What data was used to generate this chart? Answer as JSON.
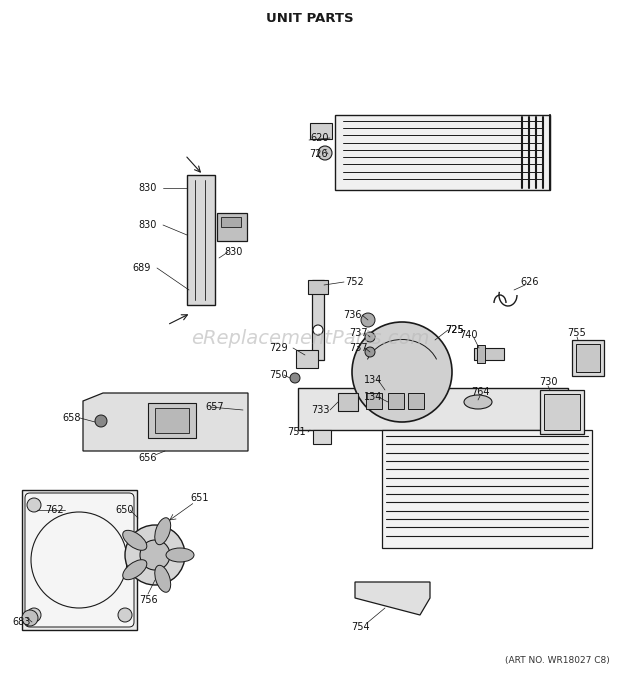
{
  "title": "UNIT PARTS",
  "watermark": "eReplacementParts.com",
  "art_no": "(ART NO. WR18027 C8)",
  "bg_color": "#ffffff",
  "title_color": "#1a1a1a",
  "line_color": "#1a1a1a",
  "watermark_color": "#bbbbbb",
  "fig_width": 6.2,
  "fig_height": 6.75,
  "dpi": 100
}
